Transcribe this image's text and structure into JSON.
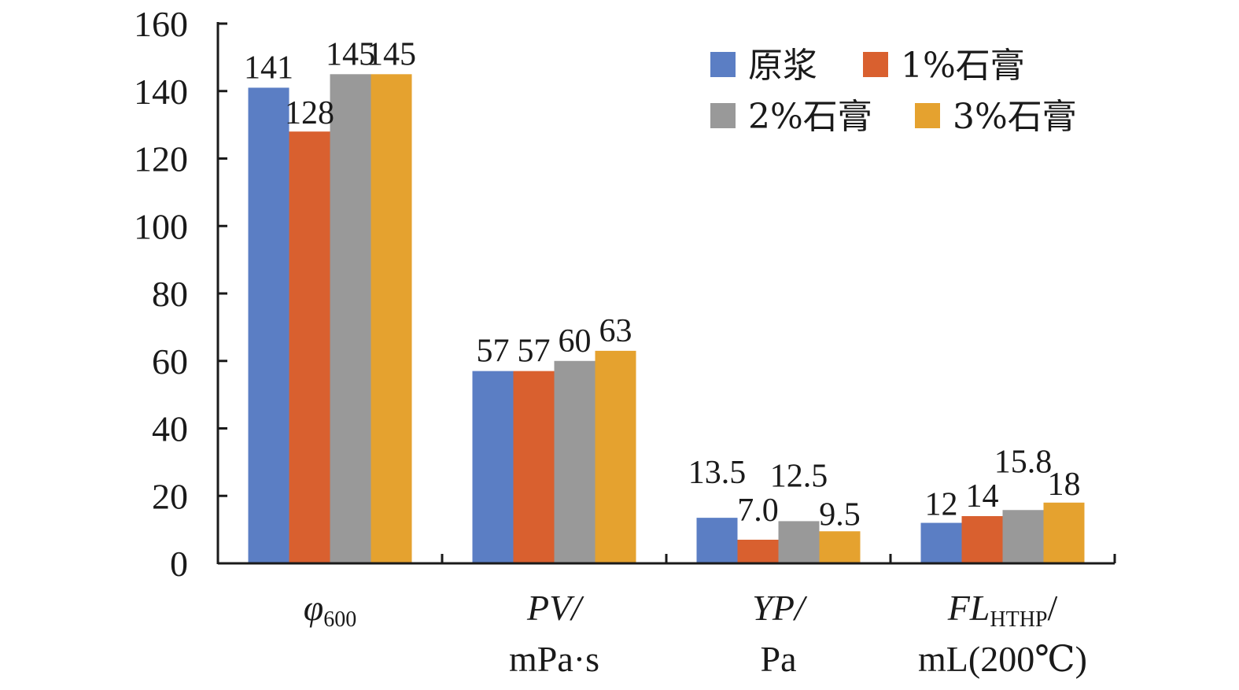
{
  "chart_data": {
    "type": "bar",
    "categories": [
      {
        "main": "φ",
        "sub": "600",
        "line2": ""
      },
      {
        "main": "PV/",
        "sub": "",
        "line2": "mPa·s"
      },
      {
        "main": "YP/",
        "sub": "",
        "line2": "Pa"
      },
      {
        "main": "FL",
        "sub": "HTHP",
        "after": "/",
        "line2": "mL(200℃)"
      }
    ],
    "series": [
      {
        "name": "原浆",
        "color": "#5b7ec4",
        "values": [
          141,
          57,
          13.5,
          12
        ],
        "labels": [
          "141",
          "57",
          "13.5",
          "12"
        ]
      },
      {
        "name": "1%石膏",
        "color": "#d9602f",
        "values": [
          128,
          57,
          7.0,
          14
        ],
        "labels": [
          "128",
          "57",
          "7.0",
          "14"
        ]
      },
      {
        "name": "2%石膏",
        "color": "#999999",
        "values": [
          145,
          60,
          12.5,
          15.8
        ],
        "labels": [
          "145",
          "60",
          "12.5",
          "15.8"
        ]
      },
      {
        "name": "3%石膏",
        "color": "#e5a22f",
        "values": [
          145,
          63,
          9.5,
          18
        ],
        "labels": [
          "145",
          "63",
          "9.5",
          "18"
        ]
      }
    ],
    "yticks": [
      0,
      20,
      40,
      60,
      80,
      100,
      120,
      140,
      160
    ],
    "ylim": [
      0,
      160
    ],
    "legend": "top-right",
    "grid": false
  }
}
